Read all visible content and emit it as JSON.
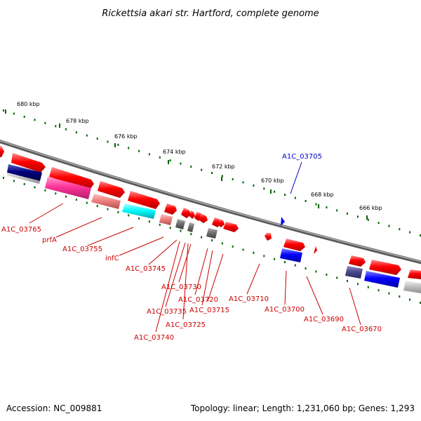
{
  "title": "Rickettsia akari str. Hartford, complete genome",
  "footer": {
    "accession": "Accession: NC_009881",
    "topology": "Topology: linear; Length: 1,231,060 bp; Genes: 1,293"
  },
  "colors": {
    "red_gene": "#ff0000",
    "pink_gene": "#ff3399",
    "salmon_gene": "#f08080",
    "cyan_gene": "#00ffff",
    "navy_gene": "#000080",
    "blue_gene": "#0000ff",
    "slate_gene": "#4b4b8f",
    "gray_gene": "#707070",
    "light_gray_gene": "#c0c0c0",
    "tick_green": "#006400",
    "backbone_gray": "#808080",
    "label_red": "#cc0000",
    "label_blue": "#0000cc"
  },
  "kbp_ticks": [
    {
      "label": "680 kbp"
    },
    {
      "label": "678 kbp"
    },
    {
      "label": "676 kbp"
    },
    {
      "label": "674 kbp"
    },
    {
      "label": "672 kbp"
    },
    {
      "label": "670 kbp"
    },
    {
      "label": "668 kbp"
    },
    {
      "label": "666 kbp"
    }
  ],
  "gene_labels": [
    {
      "text": "A1C_03765",
      "color": "red"
    },
    {
      "text": "prfA",
      "color": "red"
    },
    {
      "text": "A1C_03755",
      "color": "red"
    },
    {
      "text": "infC",
      "color": "red"
    },
    {
      "text": "A1C_03745",
      "color": "red"
    },
    {
      "text": "A1C_03730",
      "color": "red"
    },
    {
      "text": "A1C_03720",
      "color": "red"
    },
    {
      "text": "A1C_03735",
      "color": "red"
    },
    {
      "text": "A1C_03715",
      "color": "red"
    },
    {
      "text": "A1C_03725",
      "color": "red"
    },
    {
      "text": "A1C_03740",
      "color": "red"
    },
    {
      "text": "A1C_03710",
      "color": "red"
    },
    {
      "text": "A1C_03700",
      "color": "red"
    },
    {
      "text": "A1C_03690",
      "color": "red"
    },
    {
      "text": "A1C_03670",
      "color": "red"
    },
    {
      "text": "A1C_03705",
      "color": "blue"
    }
  ]
}
